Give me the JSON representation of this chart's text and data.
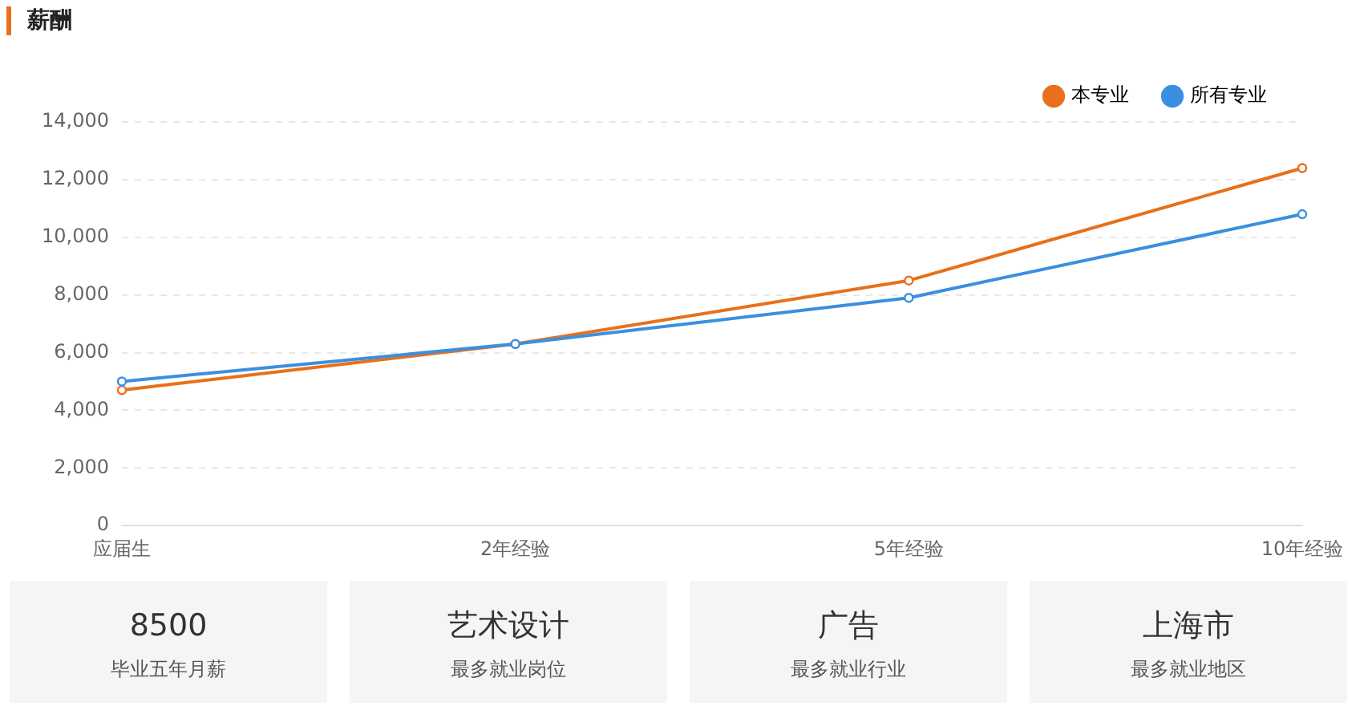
{
  "chart_data": [
    {
      "type": "line",
      "title": "薪酬",
      "categories": [
        "应届生",
        "2年经验",
        "5年经验",
        "10年经验"
      ],
      "series": [
        {
          "name": "本专业",
          "color": "#e8701a",
          "values": [
            4700,
            6300,
            8500,
            12400
          ]
        },
        {
          "name": "所有专业",
          "color": "#3b8fe0",
          "values": [
            5000,
            6300,
            7900,
            10800
          ]
        }
      ],
      "ylim": [
        0,
        14000
      ],
      "yticks": [
        0,
        {
          "value": 2000,
          "label": "2,000"
        },
        {
          "value": 4000,
          "label": "4,000"
        },
        {
          "value": 6000,
          "label": "6,000"
        },
        {
          "value": 8000,
          "label": "8,000"
        },
        {
          "value": 10000,
          "label": "10,000"
        },
        {
          "value": 12000,
          "label": "12,000"
        },
        {
          "value": 14000,
          "label": "14,000"
        }
      ],
      "grid": "y",
      "legend": "top right",
      "marker": "circle",
      "line_style": "solid"
    },
    {
      "type": "other",
      "annotations": [
        "8500",
        "毕业五年月薪",
        "艺术设计",
        "最多就业岗位",
        "广告",
        "最多就业行业",
        "上海市",
        "最多就业地区"
      ]
    }
  ]
}
